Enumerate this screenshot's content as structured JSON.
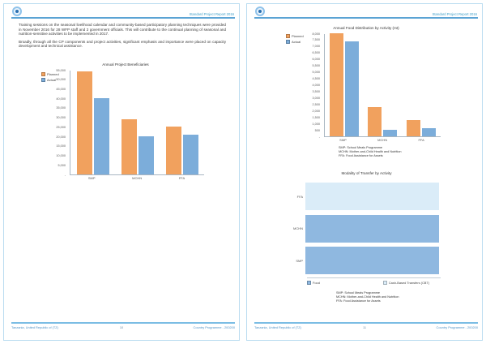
{
  "document": {
    "header": {
      "report_title": "Standard Project Report 2016"
    },
    "footer": {
      "project_text": "Tanzania, United Republic of (TZ)",
      "programme_text": "Country Programme - 200200",
      "page_numbers": [
        "10",
        "11"
      ]
    },
    "pages": {
      "left": {
        "paragraphs": [
          "Training sessions on the seasonal livelihood calendar and community-based participatory planning techniques were provided in November 2016 for 28 WFP staff and 2 government officials. This will contribute to the continual planning of seasonal and nutrition-sensitive activities to be implemented in 2017.",
          "Broadly, through all the CP components and project activities, significant emphasis and importance were placed on capacity development and technical assistance."
        ]
      }
    },
    "logo": "wfp-emblem"
  },
  "colors": {
    "planned_orange": "#f1a15e",
    "actual_blue": "#7cadda",
    "food_blue": "#8fb8e0",
    "cbt_light_blue": "#daecf8",
    "header_rule_blue": "#5ba3d4",
    "header_text_teal": "#41a0c8",
    "page_border_blue": "#badcf0"
  },
  "chart_data": [
    {
      "type": "bar",
      "title": "Annual Project Beneficiaries",
      "categories": [
        "SMP",
        "MCHN",
        "FFA"
      ],
      "series": [
        {
          "name": "Planned",
          "color": "#f1a15e",
          "values": [
            54000,
            29000,
            25000
          ]
        },
        {
          "name": "Actual",
          "color": "#7cadda",
          "values": [
            40000,
            20000,
            21000
          ]
        }
      ],
      "xlabel": "",
      "ylabel": "",
      "ylim": [
        0,
        55000
      ],
      "ytick_step": 5000,
      "zero_tick_label": "-",
      "legend_position": "top-left",
      "grid": false
    },
    {
      "type": "bar",
      "title": "Annual Food Distribution by Activity (mt)",
      "categories": [
        "SMP",
        "MCHN",
        "FFA"
      ],
      "series": [
        {
          "name": "Planned",
          "color": "#f1a15e",
          "values": [
            8000,
            2250,
            1250
          ]
        },
        {
          "name": "Actual",
          "color": "#7cadda",
          "values": [
            7400,
            500,
            600
          ]
        }
      ],
      "xlabel": "",
      "ylabel": "",
      "ylim": [
        0,
        8000
      ],
      "ytick_step": 500,
      "zero_tick_label": "-",
      "legend_position": "top-left",
      "grid": false,
      "footnotes": [
        "SMP: School Meals Programme",
        "MCHN: Mother-and-Child Health and Nutrition",
        "FFA: Food Assistance for Assets"
      ]
    },
    {
      "type": "hbar",
      "title": "Modality of Transfer by Activity",
      "xlim": [
        0,
        100
      ],
      "rows": [
        {
          "label": "FFA",
          "modality": "Cash-Based Transfers (CBT)",
          "value": 100
        },
        {
          "label": "MCHN",
          "modality": "Food",
          "value": 100
        },
        {
          "label": "SMP",
          "modality": "Food",
          "value": 100
        }
      ],
      "legend": [
        {
          "label": "Food",
          "color": "#8fb8e0"
        },
        {
          "label": "Cash-Based Transfers (CBT)",
          "color": "#daecf8"
        }
      ],
      "legend_position": "bottom",
      "grid": false,
      "footnotes": [
        "SMP: School Meals Programme",
        "MCHN: Mother-and-Child Health and Nutrition",
        "FFA: Food Assistance for Assets"
      ]
    }
  ]
}
